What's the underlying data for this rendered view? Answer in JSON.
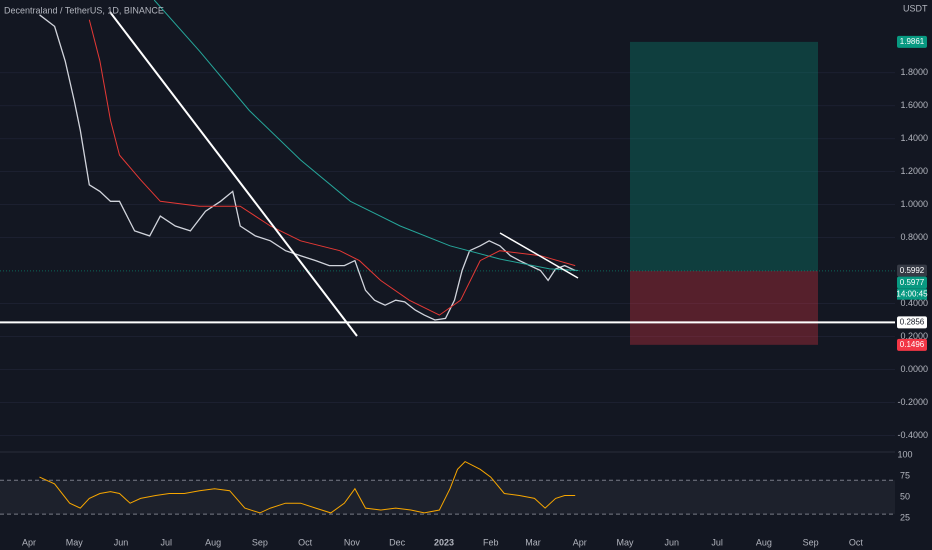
{
  "chart_data": {
    "type": "line",
    "title": "Decentraland / TetherUS, 1D, BINANCE",
    "currency": "USDT",
    "timer": "14:00:45",
    "xlim": [
      -19.2,
      573.9
    ],
    "xticks": [
      {
        "value": 0,
        "label": "Apr"
      },
      {
        "value": 30,
        "label": "May"
      },
      {
        "value": 61,
        "label": "Jun"
      },
      {
        "value": 91,
        "label": "Jul"
      },
      {
        "value": 122,
        "label": "Aug"
      },
      {
        "value": 153,
        "label": "Sep"
      },
      {
        "value": 183,
        "label": "Oct"
      },
      {
        "value": 214,
        "label": "Nov"
      },
      {
        "value": 244,
        "label": "Dec"
      },
      {
        "value": 275,
        "label": "2023"
      },
      {
        "value": 306,
        "label": "Feb"
      },
      {
        "value": 334,
        "label": "Mar"
      },
      {
        "value": 365,
        "label": "Apr"
      },
      {
        "value": 395,
        "label": "May"
      },
      {
        "value": 426,
        "label": "Jun"
      },
      {
        "value": 456,
        "label": "Jul"
      },
      {
        "value": 487,
        "label": "Aug"
      },
      {
        "value": 518,
        "label": "Sep"
      },
      {
        "value": 548,
        "label": "Oct"
      }
    ],
    "ylim": [
      -0.5,
      2.24
    ],
    "yticks": [
      {
        "value": 1.8,
        "label": "1.8000"
      },
      {
        "value": 1.6,
        "label": "1.6000"
      },
      {
        "value": 1.4,
        "label": "1.4000"
      },
      {
        "value": 1.2,
        "label": "1.2000"
      },
      {
        "value": 1,
        "label": "1.0000"
      },
      {
        "value": 0.8,
        "label": "0.8000"
      },
      {
        "value": 0.4,
        "label": "0.4000"
      },
      {
        "value": 0.2,
        "label": "0.2000"
      },
      {
        "value": 0,
        "label": "0.0000"
      },
      {
        "value": -0.2,
        "label": "-0.2000"
      },
      {
        "value": -0.4,
        "label": "-0.4000"
      }
    ],
    "series": [
      {
        "color": "#d1d4dc",
        "x": [
          7,
          17,
          24,
          30,
          34,
          40,
          47,
          54,
          60,
          70,
          80,
          87,
          97,
          107,
          117,
          127,
          135,
          140,
          150,
          160,
          170,
          180,
          190,
          199,
          209,
          216,
          223,
          229,
          236,
          243,
          249,
          256,
          262,
          269,
          276,
          282,
          287,
          292,
          299,
          305,
          312,
          319,
          325,
          332,
          339,
          344,
          349,
          355,
          362
        ],
        "values": [
          2.15,
          2.08,
          1.87,
          1.63,
          1.45,
          1.12,
          1.08,
          1.02,
          1.02,
          0.84,
          0.81,
          0.93,
          0.87,
          0.84,
          0.96,
          1.02,
          1.08,
          0.87,
          0.81,
          0.78,
          0.72,
          0.69,
          0.66,
          0.63,
          0.63,
          0.66,
          0.48,
          0.42,
          0.39,
          0.42,
          0.41,
          0.36,
          0.33,
          0.3,
          0.31,
          0.42,
          0.6,
          0.72,
          0.75,
          0.78,
          0.75,
          0.69,
          0.66,
          0.63,
          0.6,
          0.54,
          0.61,
          0.63,
          0.6
        ]
      },
      {
        "color": "#26a69a",
        "x": [
          83,
          113,
          146,
          180,
          213,
          246,
          279,
          312,
          345,
          364
        ],
        "values": [
          2.24,
          1.93,
          1.57,
          1.27,
          1.02,
          0.87,
          0.75,
          0.67,
          0.61,
          0.6
        ]
      },
      {
        "color": "#e53935",
        "x": [
          40,
          47,
          54,
          60,
          74,
          87,
          113,
          140,
          160,
          180,
          206,
          219,
          233,
          252,
          272,
          286,
          299,
          312,
          339,
          362
        ],
        "values": [
          2.12,
          1.87,
          1.51,
          1.3,
          1.15,
          1.02,
          0.99,
          0.99,
          0.87,
          0.78,
          0.72,
          0.66,
          0.54,
          0.42,
          0.33,
          0.42,
          0.66,
          0.72,
          0.69,
          0.63
        ]
      }
    ],
    "level": 0.2856,
    "price_labels": [
      {
        "value": 1.9861,
        "color": "#089981"
      },
      {
        "value": 0.5992,
        "color": "#363a45"
      },
      {
        "value": 0.5977,
        "color": "#089981"
      },
      {
        "value": 0.2856,
        "color": "#ffffff"
      },
      {
        "value": 0.1496,
        "color": "#f23645"
      }
    ],
    "target": 1.9861,
    "entry": 0.5977,
    "stop": 0.1496,
    "rsi": {
      "ylim": [
        -0.6,
        103.4
      ],
      "yticks": [
        100,
        75,
        50,
        25
      ],
      "band": [
        30,
        70
      ],
      "color": "#f7a600",
      "x": [
        7,
        17,
        27,
        34,
        40,
        47,
        54,
        60,
        67,
        74,
        84,
        93,
        103,
        113,
        123,
        133,
        143,
        153,
        160,
        170,
        180,
        190,
        200,
        209,
        216,
        223,
        233,
        243,
        253,
        262,
        272,
        279,
        284,
        289,
        299,
        306,
        315,
        325,
        335,
        342,
        349,
        355,
        362
      ],
      "values": [
        73.7,
        65.7,
        42.9,
        37.1,
        48.6,
        54.3,
        56.6,
        54.3,
        42.9,
        48.6,
        52,
        54.3,
        54.3,
        57.7,
        60,
        57.7,
        37.1,
        31.4,
        37.1,
        42.9,
        42.9,
        37.1,
        31.4,
        42.9,
        60,
        37.1,
        34.9,
        37.1,
        34.9,
        31.4,
        34.9,
        60,
        82.9,
        92,
        82.9,
        73.7,
        54.3,
        52,
        48.6,
        37.1,
        48.6,
        52,
        52
      ]
    }
  }
}
